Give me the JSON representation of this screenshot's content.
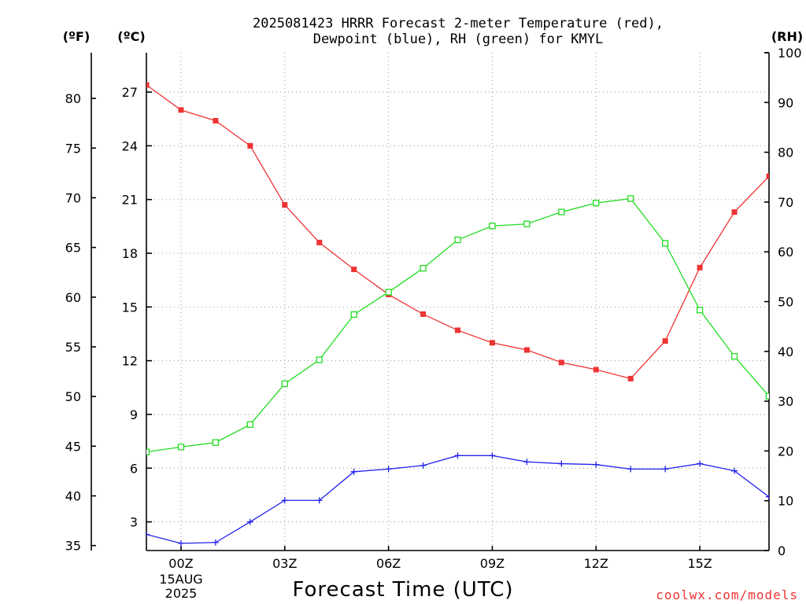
{
  "chart_data": {
    "type": "line",
    "title": [
      "2025081423 HRRR Forecast 2-meter Temperature (red),",
      "Dewpoint (blue), RH (green) for KMYL"
    ],
    "xlabel": "Forecast Time (UTC)",
    "unit_labels": {
      "fahrenheit": "(ºF)",
      "celsius": "(ºC)",
      "rh": "(RH)"
    },
    "date_labels": [
      "15AUG",
      "2025"
    ],
    "credit": "coolwx.com/models",
    "x_hours": [
      -1,
      0,
      1,
      2,
      3,
      4,
      5,
      6,
      7,
      8,
      9,
      10,
      11,
      12,
      13,
      14,
      15,
      16,
      17
    ],
    "xlim": [
      -1,
      17
    ],
    "x_ticks": [
      {
        "hour": 0,
        "label": "00Z"
      },
      {
        "hour": 3,
        "label": "03Z"
      },
      {
        "hour": 6,
        "label": "06Z"
      },
      {
        "hour": 9,
        "label": "09Z"
      },
      {
        "hour": 12,
        "label": "12Z"
      },
      {
        "hour": 15,
        "label": "15Z"
      }
    ],
    "celsius_axis": {
      "ylim": [
        1.4,
        29.2
      ],
      "ticks": [
        3,
        6,
        9,
        12,
        15,
        18,
        21,
        24,
        27
      ]
    },
    "fahrenheit_axis": {
      "ylim": [
        34.5,
        84.6
      ],
      "ticks": [
        35,
        40,
        45,
        50,
        55,
        60,
        65,
        70,
        75,
        80
      ]
    },
    "rh_axis": {
      "ylim": [
        0,
        100
      ],
      "ticks": [
        0,
        10,
        20,
        30,
        40,
        50,
        60,
        70,
        80,
        90,
        100
      ]
    },
    "grid": true,
    "series": [
      {
        "name": "Temperature",
        "axis": "celsius",
        "color": "#ee3333",
        "marker": "filled-square",
        "values": [
          27.4,
          26.0,
          25.4,
          24.0,
          20.7,
          18.6,
          17.1,
          15.7,
          14.6,
          13.7,
          13.0,
          12.6,
          11.9,
          11.5,
          11.0,
          13.1,
          17.2,
          20.3,
          22.3
        ]
      },
      {
        "name": "Dewpoint",
        "axis": "celsius",
        "color": "#2222ee",
        "marker": "plus",
        "values": [
          2.3,
          1.8,
          1.85,
          3.0,
          4.2,
          4.2,
          5.8,
          5.95,
          6.15,
          6.7,
          6.7,
          6.35,
          6.25,
          6.2,
          5.95,
          5.95,
          6.25,
          5.85,
          4.4
        ]
      },
      {
        "name": "RH",
        "axis": "rh",
        "color": "#22dd22",
        "marker": "open-square",
        "values": [
          19.8,
          20.8,
          21.7,
          25.3,
          33.5,
          38.3,
          47.4,
          51.9,
          56.7,
          62.4,
          65.2,
          65.6,
          68.0,
          69.8,
          70.7,
          61.7,
          48.3,
          39.0,
          31.0
        ]
      }
    ]
  }
}
